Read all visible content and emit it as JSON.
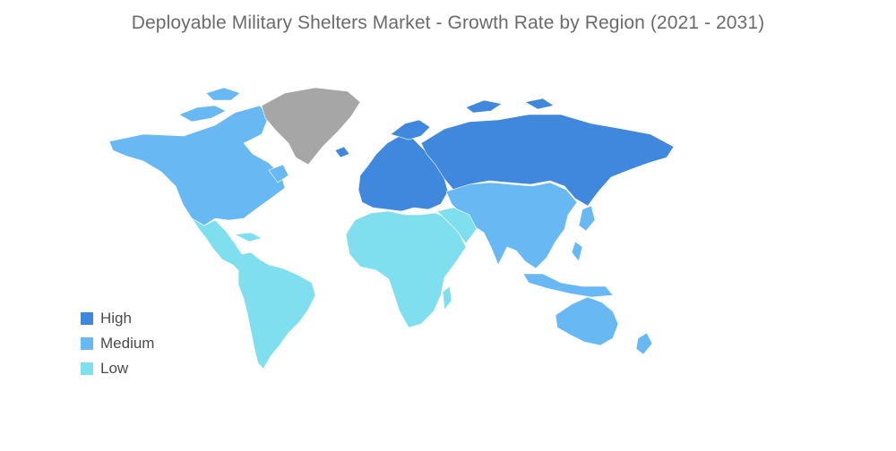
{
  "title": "Deployable Military Shelters Market - Growth Rate by Region (2021 - 2031)",
  "colors": {
    "high": "#3f88de",
    "medium": "#68b8f4",
    "low": "#7fdfee",
    "no_data": "#a6a6a6",
    "background": "#ffffff"
  },
  "legend": [
    {
      "label": "High",
      "color": "#3f88de"
    },
    {
      "label": "Medium",
      "color": "#68b8f4"
    },
    {
      "label": "Low",
      "color": "#7fdfee"
    }
  ],
  "regions": [
    {
      "name": "North America",
      "category": "Medium"
    },
    {
      "name": "Greenland",
      "category": "No data"
    },
    {
      "name": "Latin America",
      "category": "Low"
    },
    {
      "name": "Europe",
      "category": "High"
    },
    {
      "name": "Russia",
      "category": "High"
    },
    {
      "name": "Asia-Pacific",
      "category": "Medium"
    },
    {
      "name": "Australia and New Zealand",
      "category": "Medium"
    },
    {
      "name": "Middle East and Africa",
      "category": "Low"
    }
  ]
}
